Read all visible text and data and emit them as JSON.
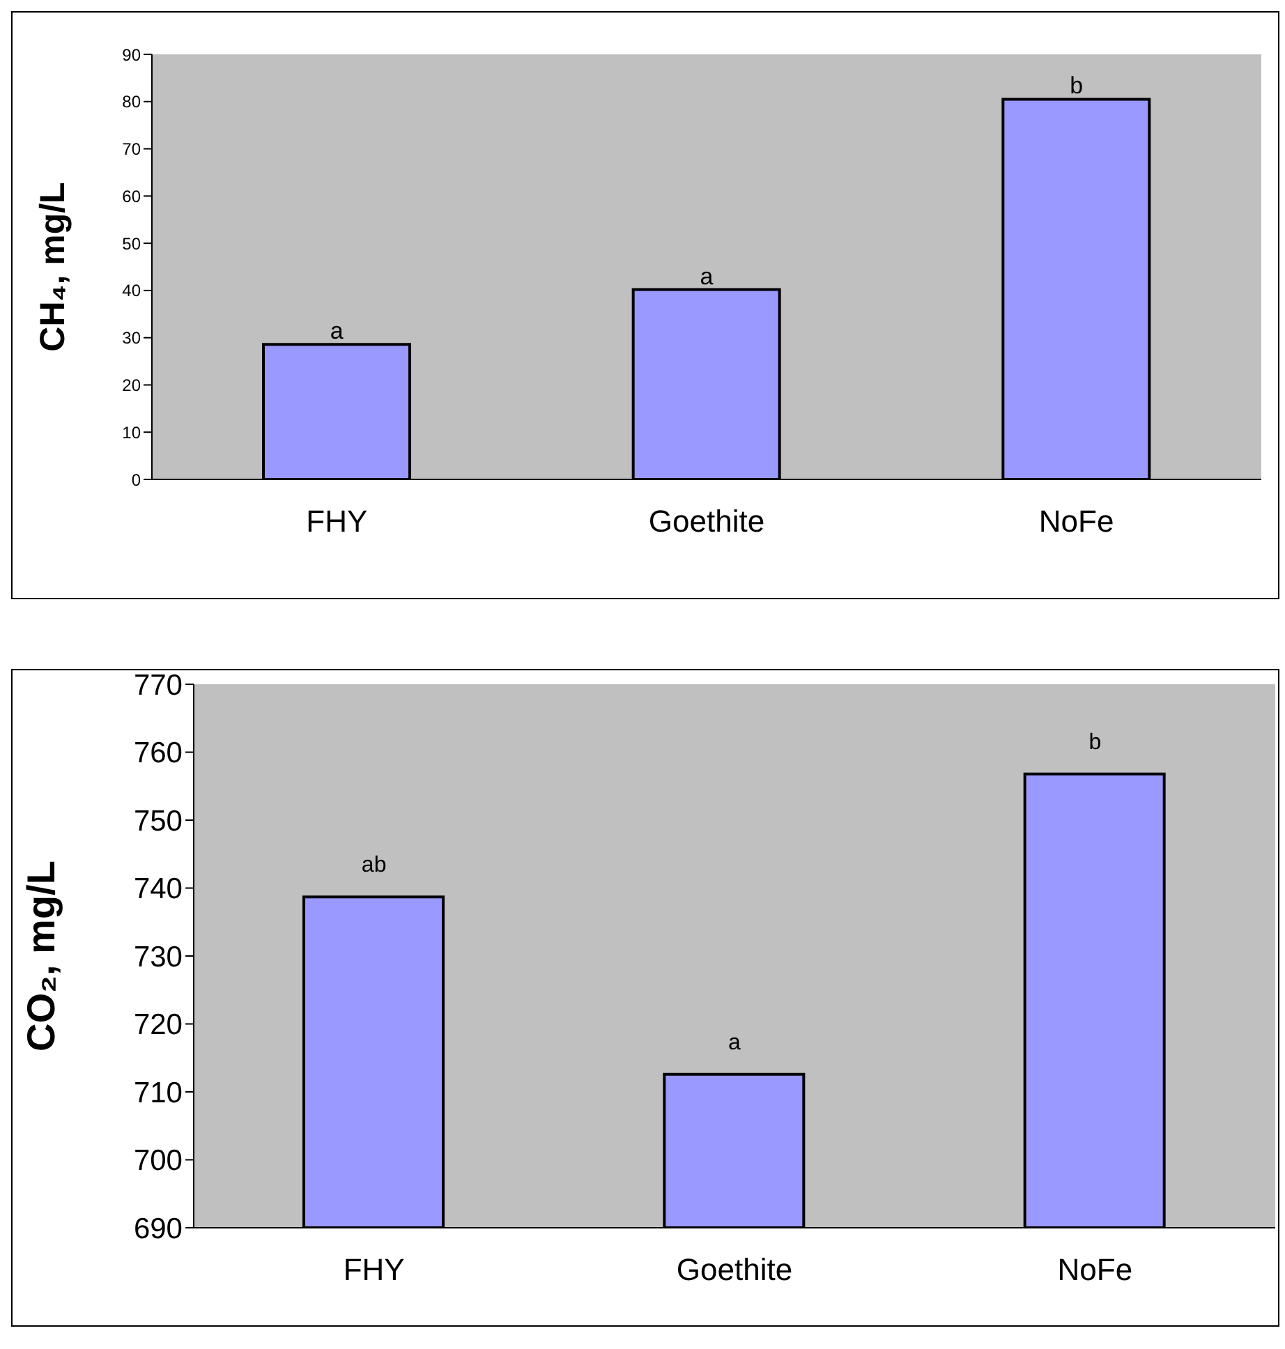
{
  "chart_data": [
    {
      "type": "bar",
      "categories": [
        "FHY",
        "Goethite",
        "NoFe"
      ],
      "values": [
        28.6,
        40.2,
        80.5
      ],
      "color": "#9999ff",
      "ylabel": "CH₄, mg/L",
      "ylim": [
        0,
        90
      ],
      "yticks": [
        0,
        10,
        20,
        30,
        40,
        50,
        60,
        70,
        80,
        90
      ],
      "grid": false,
      "legend": false,
      "annotations": [
        {
          "text": "a",
          "x": "FHY",
          "y": 28.6
        },
        {
          "text": "a",
          "x": "Goethite",
          "y": 40.2
        },
        {
          "text": "b",
          "x": "NoFe",
          "y": 80.5
        }
      ]
    },
    {
      "type": "bar",
      "categories": [
        "FHY",
        "Goethite",
        "NoFe"
      ],
      "values": [
        738.7,
        712.6,
        756.8
      ],
      "color": "#9999ff",
      "ylabel": "CO₂, mg/L",
      "ylim": [
        690,
        770
      ],
      "yticks": [
        690,
        700,
        710,
        720,
        730,
        740,
        750,
        760,
        770
      ],
      "grid": false,
      "legend": false,
      "annotations": [
        {
          "text": "ab",
          "x": "FHY",
          "y": 738.7
        },
        {
          "text": "a",
          "x": "Goethite",
          "y": 712.6
        },
        {
          "text": "b",
          "x": "NoFe",
          "y": 756.8
        }
      ]
    }
  ]
}
